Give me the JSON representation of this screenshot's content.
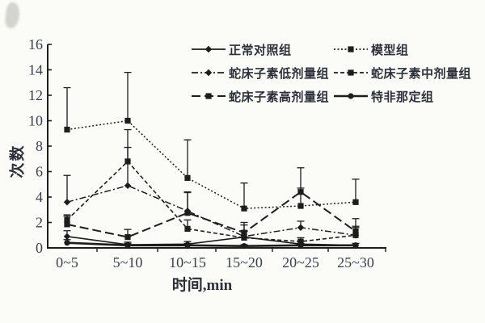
{
  "colors": {
    "ink": "#1d1d1d",
    "numeral": "#39414e",
    "text": "#2b303a",
    "background": "#fbfbf8"
  },
  "axes": {
    "ylabel": "次数",
    "xlabel": "时间,min"
  },
  "chart_data": {
    "type": "line",
    "title": "",
    "xlabel": "时间,min",
    "ylabel": "次数",
    "ylim": [
      0,
      16
    ],
    "yticks": [
      0,
      2,
      4,
      6,
      8,
      10,
      12,
      14,
      16
    ],
    "categories": [
      "0~5",
      "5~10",
      "10~15",
      "15~20",
      "20~25",
      "25~30"
    ],
    "grid": false,
    "error_bars": "upper, with caps",
    "legend_position": "inside top, two columns",
    "series": [
      {
        "name": "正常对照组",
        "marker": "diamond",
        "line": "solid",
        "width": 1.6,
        "values": [
          0.9,
          0.25,
          0.3,
          0.85,
          0.3,
          0.2
        ],
        "errors": [
          0.45,
          0.2,
          0.2,
          0.5,
          0.25,
          0.15
        ]
      },
      {
        "name": "模型组",
        "marker": "square",
        "line": "dotted",
        "width": 1.5,
        "values": [
          9.3,
          10.0,
          5.5,
          3.1,
          3.3,
          3.6
        ],
        "errors": [
          3.3,
          3.8,
          3.0,
          2.0,
          1.4,
          1.8
        ]
      },
      {
        "name": "蛇床子素低剂量组",
        "marker": "diamond",
        "line": "dashdot",
        "width": 1.5,
        "values": [
          3.6,
          4.9,
          2.9,
          0.9,
          1.6,
          1.0
        ],
        "errors": [
          2.1,
          3.0,
          1.5,
          0.9,
          0.5,
          0.6
        ]
      },
      {
        "name": "蛇床子素中剂量组",
        "marker": "square",
        "line": "dash",
        "width": 1.6,
        "values": [
          2.2,
          6.8,
          1.5,
          0.8,
          0.5,
          1.0
        ],
        "errors": [
          0.4,
          2.5,
          0.7,
          0.5,
          0.3,
          0.7
        ]
      },
      {
        "name": "蛇床子素高剂量组",
        "marker": "square",
        "line": "longdash",
        "width": 2.0,
        "values": [
          1.85,
          0.85,
          2.75,
          1.2,
          4.4,
          1.3
        ],
        "errors": [
          0.65,
          0.6,
          1.6,
          0.8,
          1.9,
          1.0
        ]
      },
      {
        "name": "特非那定组",
        "marker": "circle",
        "line": "solid",
        "width": 2.6,
        "values": [
          0.4,
          0.2,
          0.2,
          0.15,
          0.2,
          0.2
        ],
        "errors": [
          0.25,
          0.15,
          0.15,
          0.1,
          0.15,
          0.15
        ]
      }
    ]
  }
}
